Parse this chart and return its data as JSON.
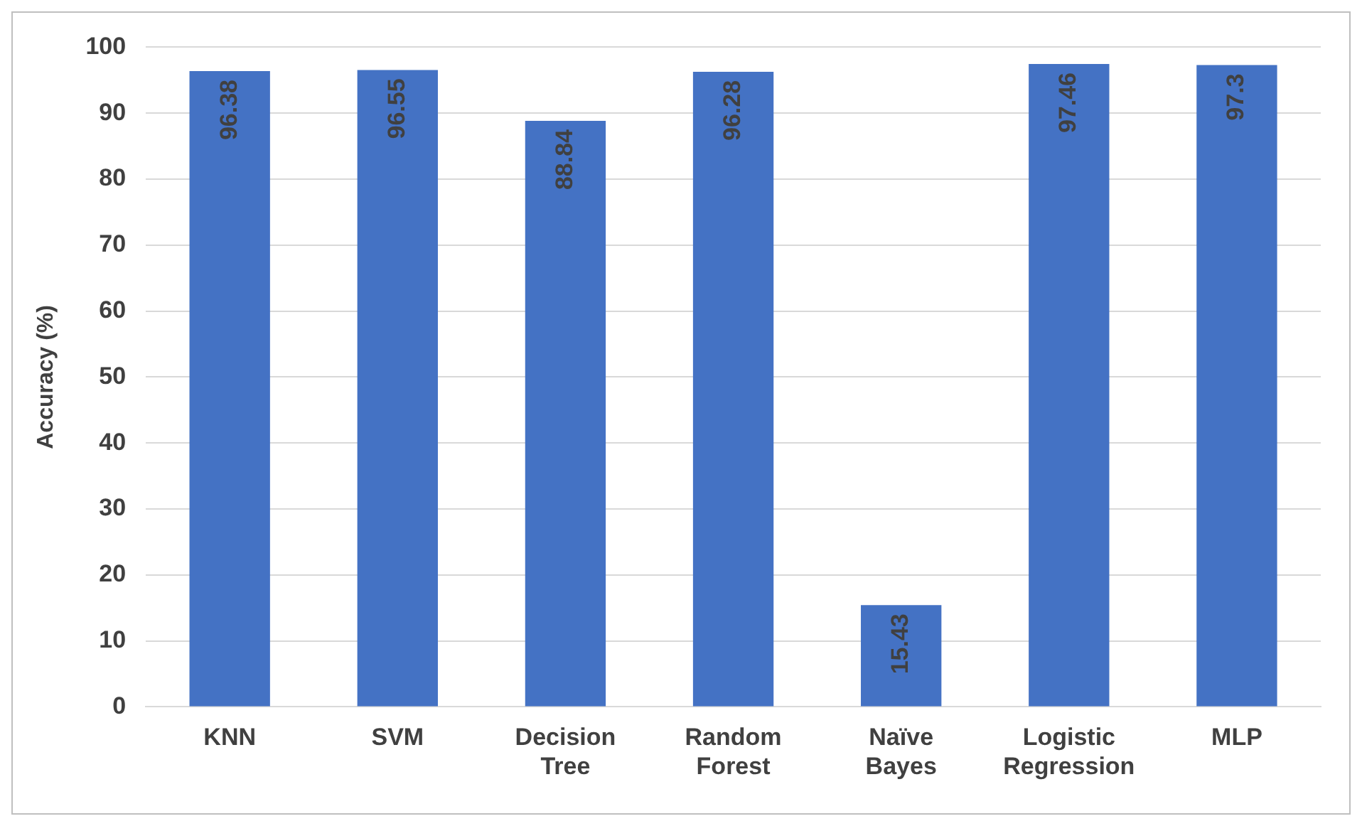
{
  "chart_data": {
    "type": "bar",
    "ylabel": "Accuracy (%)",
    "categories": [
      "KNN",
      "SVM",
      "Decision Tree",
      "Random Forest",
      "Naïve Bayes",
      "Logistic Regression",
      "MLP"
    ],
    "values": [
      96.38,
      96.55,
      88.84,
      96.28,
      15.43,
      97.46,
      97.3
    ],
    "color": "#4472c4",
    "ylim": [
      0,
      100
    ],
    "yticks": [
      0,
      10,
      20,
      30,
      40,
      50,
      60,
      70,
      80,
      90,
      100
    ],
    "grid": "y",
    "legend": false,
    "data_labels": true
  }
}
